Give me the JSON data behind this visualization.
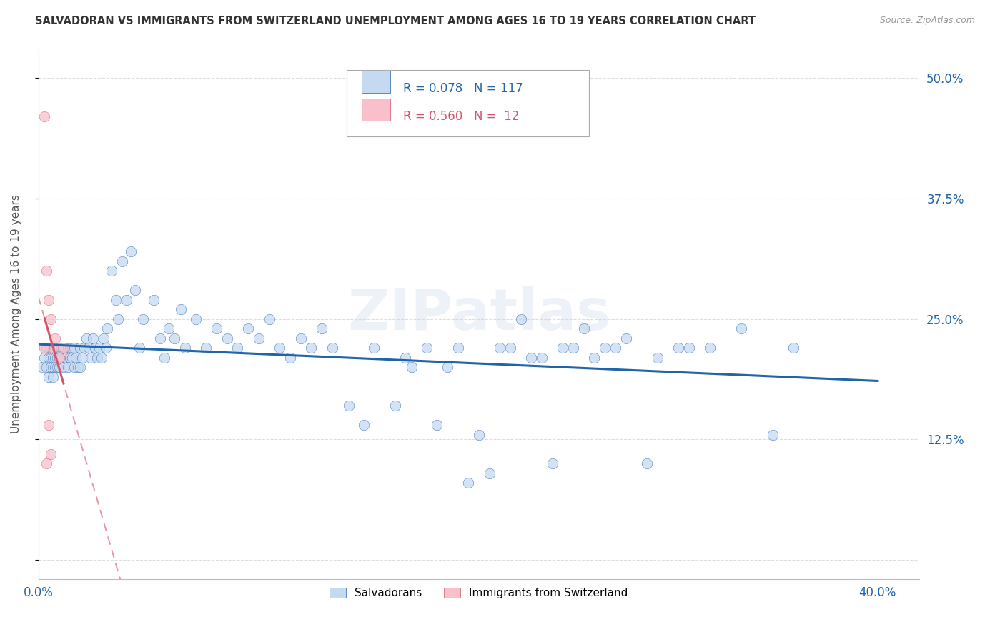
{
  "title": "SALVADORAN VS IMMIGRANTS FROM SWITZERLAND UNEMPLOYMENT AMONG AGES 16 TO 19 YEARS CORRELATION CHART",
  "source": "Source: ZipAtlas.com",
  "ylabel": "Unemployment Among Ages 16 to 19 years",
  "xlim": [
    0.0,
    0.42
  ],
  "ylim": [
    -0.02,
    0.53
  ],
  "background_color": "#ffffff",
  "salvadoran_color": "#c5d9f1",
  "swiss_color": "#f9c0cb",
  "salvadoran_line_color": "#2165a8",
  "swiss_line_color": "#d4546a",
  "legend_label_salvadoran": "Salvadorans",
  "legend_label_swiss": "Immigrants from Switzerland",
  "R_salvadoran": 0.078,
  "N_salvadoran": 117,
  "R_swiss": 0.56,
  "N_swiss": 12,
  "watermark": "ZIPatlas",
  "grid_color": "#dddddd",
  "ytick_positions": [
    0.0,
    0.125,
    0.25,
    0.375,
    0.5
  ],
  "ytick_labels": [
    "",
    "12.5%",
    "25.0%",
    "37.5%",
    "50.0%"
  ],
  "xtick_positions": [
    0.0,
    0.4
  ],
  "xtick_labels": [
    "0.0%",
    "40.0%"
  ],
  "salv_x": [
    0.002,
    0.003,
    0.004,
    0.004,
    0.005,
    0.005,
    0.005,
    0.006,
    0.006,
    0.006,
    0.007,
    0.007,
    0.007,
    0.008,
    0.008,
    0.008,
    0.009,
    0.009,
    0.009,
    0.01,
    0.01,
    0.01,
    0.011,
    0.011,
    0.012,
    0.012,
    0.013,
    0.013,
    0.014,
    0.014,
    0.015,
    0.015,
    0.016,
    0.016,
    0.017,
    0.017,
    0.018,
    0.019,
    0.02,
    0.02,
    0.021,
    0.022,
    0.023,
    0.024,
    0.025,
    0.026,
    0.027,
    0.028,
    0.029,
    0.03,
    0.031,
    0.032,
    0.033,
    0.035,
    0.037,
    0.038,
    0.04,
    0.042,
    0.044,
    0.046,
    0.048,
    0.05,
    0.055,
    0.058,
    0.06,
    0.062,
    0.065,
    0.068,
    0.07,
    0.075,
    0.08,
    0.085,
    0.09,
    0.095,
    0.1,
    0.105,
    0.11,
    0.115,
    0.12,
    0.125,
    0.13,
    0.135,
    0.14,
    0.148,
    0.155,
    0.16,
    0.17,
    0.178,
    0.19,
    0.2,
    0.21,
    0.22,
    0.23,
    0.24,
    0.25,
    0.26,
    0.27,
    0.28,
    0.295,
    0.31,
    0.32,
    0.335,
    0.35,
    0.36,
    0.175,
    0.185,
    0.195,
    0.205,
    0.215,
    0.225,
    0.235,
    0.245,
    0.255,
    0.265,
    0.275,
    0.29,
    0.305
  ],
  "salv_y": [
    0.2,
    0.21,
    0.2,
    0.22,
    0.19,
    0.21,
    0.22,
    0.2,
    0.21,
    0.22,
    0.19,
    0.2,
    0.21,
    0.2,
    0.21,
    0.22,
    0.2,
    0.21,
    0.22,
    0.2,
    0.21,
    0.22,
    0.21,
    0.22,
    0.2,
    0.22,
    0.21,
    0.22,
    0.2,
    0.22,
    0.21,
    0.22,
    0.21,
    0.22,
    0.2,
    0.22,
    0.21,
    0.2,
    0.22,
    0.2,
    0.21,
    0.22,
    0.23,
    0.22,
    0.21,
    0.23,
    0.22,
    0.21,
    0.22,
    0.21,
    0.23,
    0.22,
    0.24,
    0.3,
    0.27,
    0.25,
    0.31,
    0.27,
    0.32,
    0.28,
    0.22,
    0.25,
    0.27,
    0.23,
    0.21,
    0.24,
    0.23,
    0.26,
    0.22,
    0.25,
    0.22,
    0.24,
    0.23,
    0.22,
    0.24,
    0.23,
    0.25,
    0.22,
    0.21,
    0.23,
    0.22,
    0.24,
    0.22,
    0.16,
    0.14,
    0.22,
    0.16,
    0.2,
    0.14,
    0.22,
    0.13,
    0.22,
    0.25,
    0.21,
    0.22,
    0.24,
    0.22,
    0.23,
    0.21,
    0.22,
    0.22,
    0.24,
    0.13,
    0.22,
    0.21,
    0.22,
    0.2,
    0.08,
    0.09,
    0.22,
    0.21,
    0.1,
    0.22,
    0.21,
    0.22,
    0.1,
    0.22
  ],
  "swiss_x": [
    0.003,
    0.004,
    0.005,
    0.006,
    0.007,
    0.008,
    0.01,
    0.012,
    0.004,
    0.005,
    0.003,
    0.006
  ],
  "swiss_y": [
    0.46,
    0.3,
    0.27,
    0.25,
    0.22,
    0.23,
    0.21,
    0.22,
    0.1,
    0.14,
    0.22,
    0.11
  ]
}
